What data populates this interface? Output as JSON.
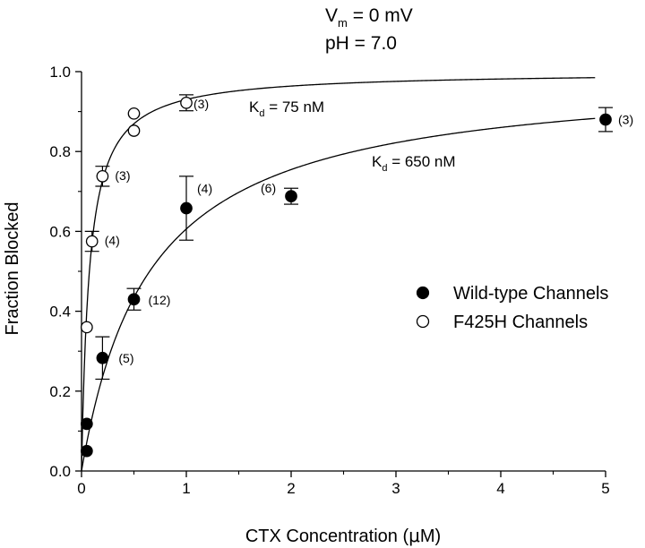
{
  "chart_data": {
    "type": "scatter",
    "conditions": [
      {
        "symbol": "V",
        "sub": "m",
        "rest": " = 0 mV"
      },
      {
        "text": "pH = 7.0"
      }
    ],
    "xlabel_parts": {
      "before": "CTX Concentration (",
      "mu": "μ",
      "after": "M)"
    },
    "ylabel": "Fraction Blocked",
    "xlim": [
      0,
      5
    ],
    "ylim": [
      0.0,
      1.0
    ],
    "x_ticks": [
      "0",
      "1",
      "2",
      "3",
      "4",
      "5"
    ],
    "y_ticks": [
      "0.0",
      "0.2",
      "0.4",
      "0.6",
      "0.8",
      "1.0"
    ],
    "grid": false,
    "legend_position": "right",
    "series": [
      {
        "name": "Wild-type Channels",
        "marker": "filled-circle",
        "color": "#000000",
        "points": [
          {
            "x": 0.05,
            "y": 0.05
          },
          {
            "x": 0.05,
            "y": 0.118
          },
          {
            "x": 0.2,
            "y": 0.283,
            "err": 0.053,
            "n": "(5)"
          },
          {
            "x": 0.5,
            "y": 0.43,
            "err": 0.027,
            "n": "(12)"
          },
          {
            "x": 1.0,
            "y": 0.658,
            "err": 0.08,
            "n": "(4)"
          },
          {
            "x": 2.0,
            "y": 0.688,
            "err": 0.02,
            "n": "(6)"
          },
          {
            "x": 5.0,
            "y": 0.88,
            "err": 0.03,
            "n": "(3)"
          }
        ],
        "fit": {
          "kd": 0.65,
          "xmax": 4.9,
          "label_parts": {
            "k": "K",
            "sub": "d",
            "rest": " = 650 nM"
          }
        }
      },
      {
        "name": "F425H Channels",
        "marker": "open-circle",
        "color": "#000000",
        "points": [
          {
            "x": 0.05,
            "y": 0.36
          },
          {
            "x": 0.1,
            "y": 0.575,
            "err": 0.025,
            "n": "(4)"
          },
          {
            "x": 0.2,
            "y": 0.738,
            "err": 0.025,
            "n": "(3)"
          },
          {
            "x": 0.5,
            "y": 0.852
          },
          {
            "x": 0.5,
            "y": 0.895
          },
          {
            "x": 1.0,
            "y": 0.922,
            "err": 0.02,
            "n": "(3)"
          }
        ],
        "fit": {
          "kd": 0.075,
          "xmax": 4.9,
          "label_parts": {
            "k": "K",
            "sub": "d",
            "rest": " = 75 nM"
          }
        }
      }
    ]
  }
}
